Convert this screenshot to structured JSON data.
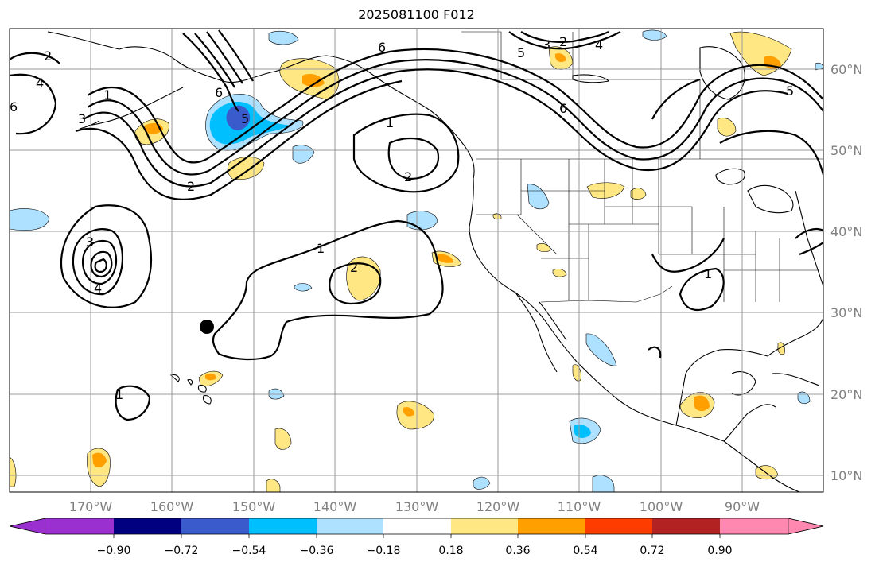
{
  "title": "2025081100 F012",
  "map": {
    "lon_ticks": [
      "170°W",
      "160°W",
      "150°W",
      "140°W",
      "130°W",
      "120°W",
      "110°W",
      "100°W",
      "90°W"
    ],
    "lat_ticks": [
      "60°N",
      "50°N",
      "40°N",
      "30°N",
      "20°N",
      "10°N"
    ],
    "contour_labels": [
      "2",
      "4",
      "3",
      "6",
      "1",
      "2",
      "1",
      "3",
      "4",
      "6",
      "5",
      "6",
      "2",
      "1",
      "2",
      "1",
      "3",
      "4",
      "5",
      "5",
      "2",
      "6",
      "1"
    ],
    "marker": "black dot"
  },
  "colorbar": {
    "tick_labels": [
      "−0.90",
      "−0.72",
      "−0.54",
      "−0.36",
      "−0.18",
      "0.18",
      "0.36",
      "0.54",
      "0.72",
      "0.90"
    ],
    "colors": [
      "#9b30d0",
      "#000080",
      "#3a5bcc",
      "#00bfff",
      "#aee0ff",
      "#ffffff",
      "#ffe884",
      "#ff9f00",
      "#ff3c00",
      "#b22222",
      "#ff88b0"
    ]
  }
}
